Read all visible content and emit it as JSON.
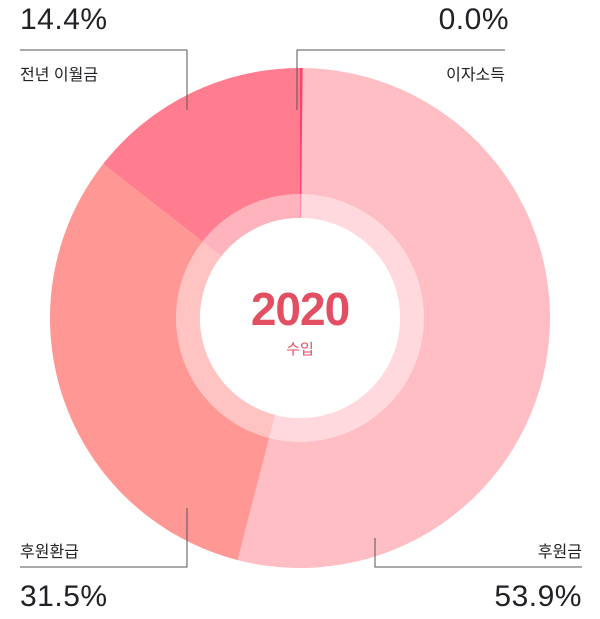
{
  "chart_data": {
    "type": "pie",
    "categories": [
      "후원금",
      "후원환급",
      "전년 이월금",
      "이자소득"
    ],
    "values": [
      53.9,
      31.5,
      14.4,
      0.0
    ],
    "value_labels": [
      "53.9%",
      "31.5%",
      "14.4%",
      "0.0%"
    ],
    "colors": [
      "#ffbdc4",
      "#ff9894",
      "#ff7d8e",
      "#ff3f6e"
    ],
    "center_title": "2020",
    "center_subtitle": "수입",
    "donut": true,
    "legend": "none"
  }
}
